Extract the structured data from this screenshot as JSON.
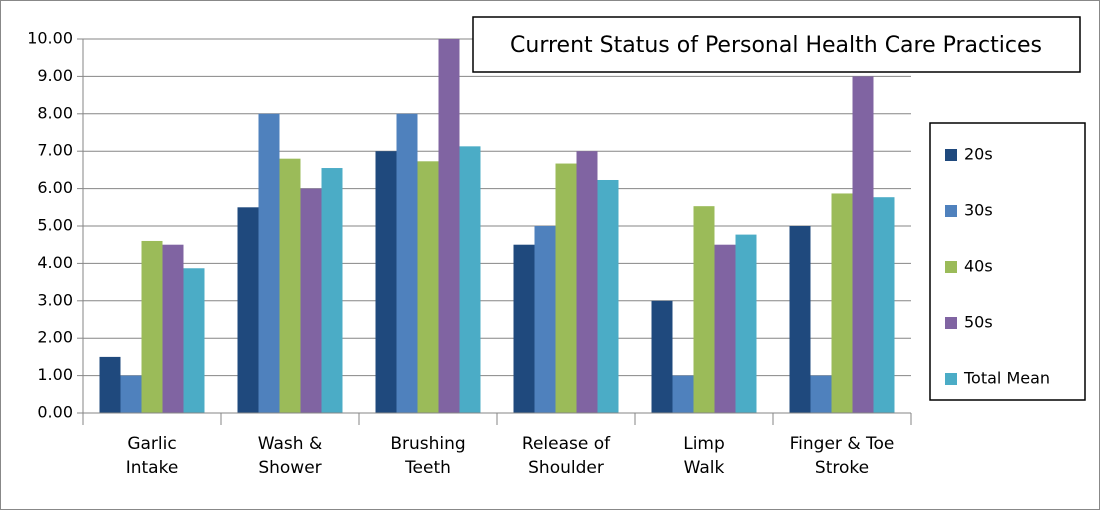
{
  "chart_data": {
    "type": "bar",
    "title": "Current Status of Personal Health Care Practices",
    "categories": [
      "Garlic\nIntake",
      "Wash &\nShower",
      "Brushing\nTeeth",
      "Release of\nShoulder",
      "Limp\nWalk",
      "Finger & Toe\nStroke"
    ],
    "series": [
      {
        "name": "20s",
        "color": "#1f497d",
        "values": [
          1.5,
          5.5,
          7.0,
          4.5,
          3.0,
          5.0
        ]
      },
      {
        "name": "30s",
        "color": "#4f81bd",
        "values": [
          1.0,
          8.0,
          8.0,
          5.0,
          1.0,
          1.0
        ]
      },
      {
        "name": "40s",
        "color": "#9bbb59",
        "values": [
          4.6,
          6.8,
          6.73,
          6.67,
          5.53,
          5.87
        ]
      },
      {
        "name": "50s",
        "color": "#8064a2",
        "values": [
          4.5,
          6.0,
          10.0,
          7.0,
          4.5,
          9.0
        ]
      },
      {
        "name": "Total Mean",
        "color": "#4bacc6",
        "values": [
          3.87,
          6.55,
          7.13,
          6.23,
          4.77,
          5.77
        ]
      }
    ],
    "ylim": [
      0,
      10
    ],
    "yticks": [
      {
        "value": 0,
        "label": "0.00"
      },
      {
        "value": 1,
        "label": "1.00"
      },
      {
        "value": 2,
        "label": "2.00"
      },
      {
        "value": 3,
        "label": "3.00"
      },
      {
        "value": 4,
        "label": "4.00"
      },
      {
        "value": 5,
        "label": "5.00"
      },
      {
        "value": 6,
        "label": "6.00"
      },
      {
        "value": 7,
        "label": "7.00"
      },
      {
        "value": 8,
        "label": "8.00"
      },
      {
        "value": 9,
        "label": "9.00"
      },
      {
        "value": 10,
        "label": "10.00"
      }
    ],
    "grid": true,
    "legend": "right"
  }
}
